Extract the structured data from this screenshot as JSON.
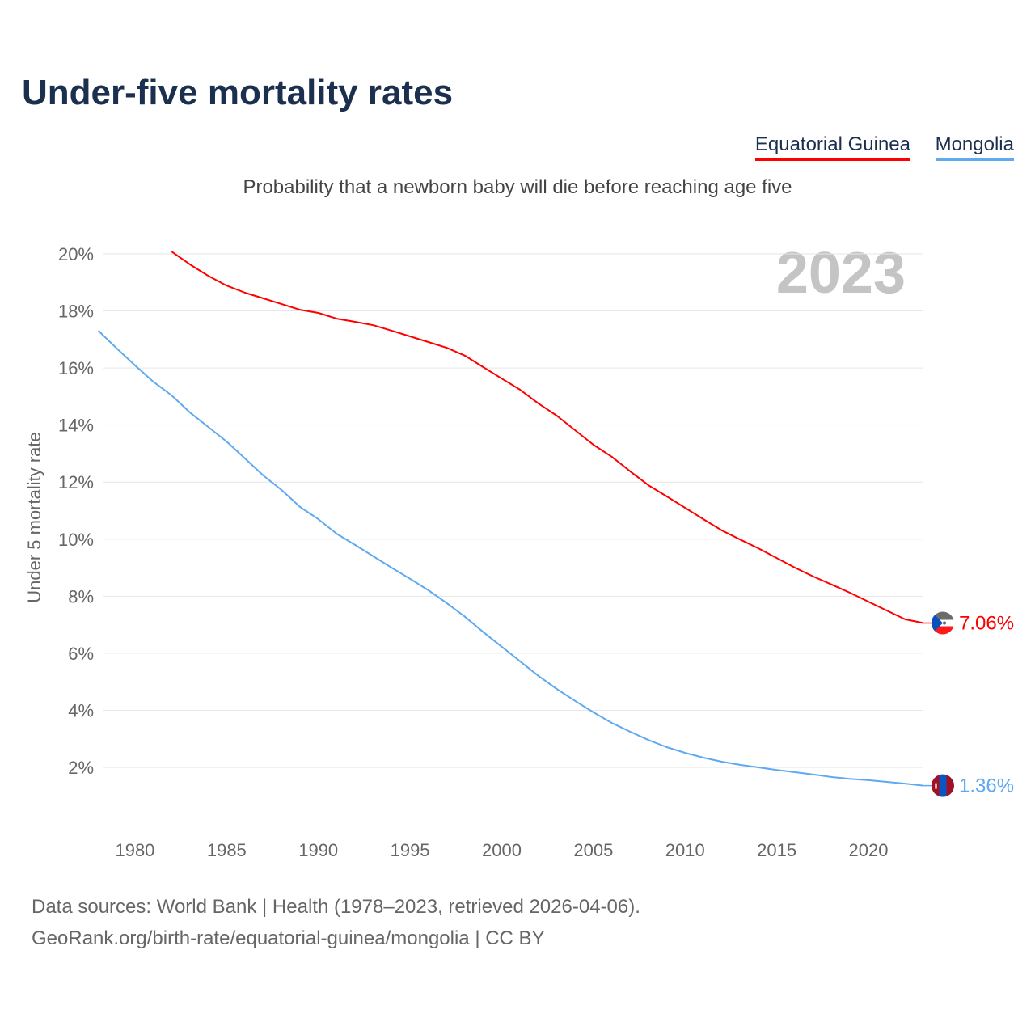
{
  "chart_data": {
    "type": "line",
    "title": "Under-five mortality rates",
    "subtitle": "Probability that a newborn baby will die before reaching age five",
    "ylabel": "Under 5 mortality rate",
    "xlabel": "",
    "year_watermark": "2023",
    "xlim": [
      1978,
      2023
    ],
    "ylim": [
      0,
      21
    ],
    "x_ticks": [
      1980,
      1985,
      1990,
      1995,
      2000,
      2005,
      2010,
      2015,
      2020
    ],
    "y_ticks": [
      2,
      4,
      6,
      8,
      10,
      12,
      14,
      16,
      18,
      20
    ],
    "y_tick_labels": [
      "2%",
      "4%",
      "6%",
      "8%",
      "10%",
      "12%",
      "14%",
      "16%",
      "18%",
      "20%"
    ],
    "grid": true,
    "legend_placement": "top-right",
    "series": [
      {
        "name": "Equatorial Guinea",
        "color": "#ff0000",
        "end_label": "7.06%",
        "x": [
          1982,
          1983,
          1984,
          1985,
          1986,
          1987,
          1988,
          1989,
          1990,
          1991,
          1992,
          1993,
          1994,
          1995,
          1996,
          1997,
          1998,
          1999,
          2000,
          2001,
          2002,
          2003,
          2004,
          2005,
          2006,
          2007,
          2008,
          2009,
          2010,
          2011,
          2012,
          2013,
          2014,
          2015,
          2016,
          2017,
          2018,
          2019,
          2020,
          2021,
          2022,
          2023
        ],
        "values": [
          20.08,
          19.63,
          19.23,
          18.89,
          18.64,
          18.44,
          18.24,
          18.04,
          17.93,
          17.73,
          17.62,
          17.5,
          17.31,
          17.11,
          16.91,
          16.71,
          16.43,
          16.03,
          15.63,
          15.24,
          14.76,
          14.33,
          13.82,
          13.31,
          12.89,
          12.38,
          11.89,
          11.5,
          11.1,
          10.7,
          10.31,
          9.99,
          9.68,
          9.34,
          9.0,
          8.69,
          8.41,
          8.12,
          7.81,
          7.5,
          7.19,
          7.06
        ]
      },
      {
        "name": "Mongolia",
        "color": "#5ea9f0",
        "end_label": "1.36%",
        "x": [
          1978,
          1979,
          1980,
          1981,
          1982,
          1983,
          1984,
          1985,
          1986,
          1987,
          1988,
          1989,
          1990,
          1991,
          1992,
          1993,
          1994,
          1995,
          1996,
          1997,
          1998,
          1999,
          2000,
          2001,
          2002,
          2003,
          2004,
          2005,
          2006,
          2007,
          2008,
          2009,
          2010,
          2011,
          2012,
          2013,
          2014,
          2015,
          2016,
          2017,
          2018,
          2019,
          2020,
          2021,
          2022,
          2023
        ],
        "values": [
          17.31,
          16.69,
          16.09,
          15.52,
          15.04,
          14.44,
          13.93,
          13.42,
          12.83,
          12.23,
          11.72,
          11.13,
          10.7,
          10.19,
          9.8,
          9.4,
          9.0,
          8.61,
          8.21,
          7.76,
          7.28,
          6.74,
          6.23,
          5.72,
          5.21,
          4.75,
          4.33,
          3.93,
          3.56,
          3.25,
          2.96,
          2.71,
          2.51,
          2.34,
          2.2,
          2.09,
          2.0,
          1.91,
          1.83,
          1.75,
          1.66,
          1.6,
          1.55,
          1.49,
          1.43,
          1.36
        ]
      }
    ]
  },
  "footer": {
    "source": "Data sources: World Bank | Health (1978–2023, retrieved 2026-04-06).",
    "url": "GeoRank.org/birth-rate/equatorial-guinea/mongolia | CC BY"
  }
}
